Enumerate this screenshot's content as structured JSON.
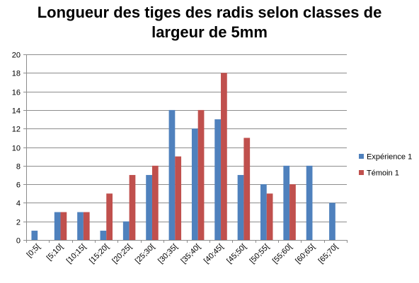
{
  "chart_data": {
    "type": "bar",
    "title_lines": [
      "Longueur des tiges des radis selon classes de",
      "largeur de 5mm"
    ],
    "categories": [
      "[0;5[",
      "[5;10[",
      "[10;15[",
      "[15;20[",
      "[20;25[",
      "[25;30[",
      "[30;35[",
      "[35;40[",
      "[40;45[",
      "[45;50[",
      "[50;55[",
      "[55;60[",
      "[60;65[",
      "[65;70["
    ],
    "series": [
      {
        "name": "Expérience 1",
        "color": "#4F81BD",
        "values": [
          1,
          3,
          3,
          1,
          2,
          7,
          14,
          12,
          13,
          7,
          6,
          8,
          8,
          4
        ]
      },
      {
        "name": "Témoin 1",
        "color": "#C0504D",
        "values": [
          0,
          3,
          3,
          5,
          7,
          8,
          9,
          14,
          18,
          11,
          5,
          6,
          0,
          0
        ]
      }
    ],
    "ylim": [
      0,
      20
    ],
    "yticks": [
      0,
      2,
      4,
      6,
      8,
      10,
      12,
      14,
      16,
      18,
      20
    ],
    "grid": true,
    "legend_position": "right",
    "xlabel": "",
    "ylabel": ""
  }
}
